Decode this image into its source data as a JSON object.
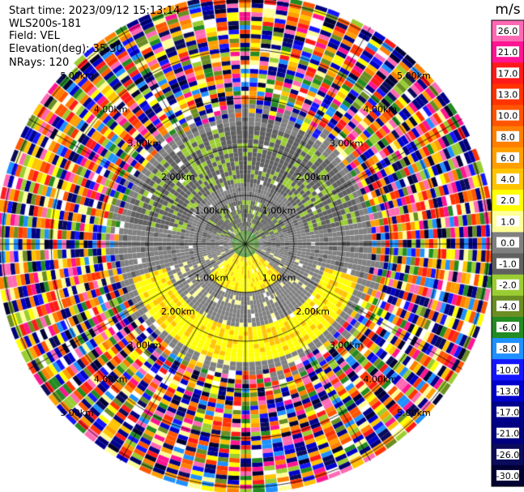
{
  "header": {
    "lines": [
      {
        "label": "Start time:",
        "value": "2023/09/12 15:13:14"
      },
      {
        "label": "",
        "value": "WLS200s-181"
      },
      {
        "label": "Field:",
        "value": "VEL"
      },
      {
        "label": "Elevation(deg):",
        "value": "35.30"
      },
      {
        "label": "NRays:",
        "value": "120"
      }
    ]
  },
  "chart_data": {
    "type": "heatmap",
    "projection": "polar PPI (plan position indicator)",
    "field": "VEL",
    "instrument": "WLS200s-181",
    "start_time": "2023/09/12 15:13:14",
    "elevation_deg": 35.3,
    "n_rays": 120,
    "range_rings_km": [
      1,
      2,
      3,
      4,
      5
    ],
    "range_ring_labels": [
      "1.00km",
      "2.00km",
      "3.00km",
      "4.00km",
      "5.00km"
    ],
    "radial_lines_every_deg": 30,
    "grid": true,
    "colorbar": {
      "unit": "m/s",
      "placement": "right",
      "tick_labels": [
        "26.0",
        "21.0",
        "17.0",
        "13.0",
        "10.0",
        "8.0",
        "6.0",
        "4.0",
        "2.0",
        "1.0",
        "0.0",
        "-1.0",
        "-2.0",
        "-4.0",
        "-6.0",
        "-8.0",
        "-10.0",
        "-13.0",
        "-17.0",
        "-21.0",
        "-26.0",
        "-30.0"
      ],
      "colors": [
        "#ff69b4",
        "#ff1493",
        "#ff1a1a",
        "#ff3300",
        "#ff5500",
        "#ff7f00",
        "#ff9f00",
        "#ffc400",
        "#ffff00",
        "#ffff99",
        "#808080",
        "#606060",
        "#9acd32",
        "#6b8e23",
        "#228b22",
        "#1e90ff",
        "#1515ff",
        "#0000cc",
        "#00008b",
        "#000080",
        "#0b0b5c",
        "#000033"
      ]
    },
    "near_field_pattern": {
      "approach_toward_north_ms": [
        -1,
        -2
      ],
      "receding_south_ms": [
        2,
        4
      ],
      "near_zero_ms": 0,
      "noise_beyond_km": 2.6
    }
  }
}
